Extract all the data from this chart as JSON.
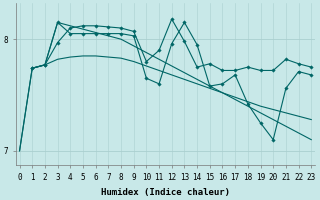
{
  "xlabel": "Humidex (Indice chaleur)",
  "bg_color": "#c8e8e8",
  "line_color": "#006666",
  "grid_color": "#aacfcf",
  "xlim": [
    -0.3,
    23.3
  ],
  "ylim": [
    6.87,
    8.32
  ],
  "yticks": [
    7,
    8
  ],
  "xticks": [
    0,
    1,
    2,
    3,
    4,
    5,
    6,
    7,
    8,
    9,
    10,
    11,
    12,
    13,
    14,
    15,
    16,
    17,
    18,
    19,
    20,
    21,
    22,
    23
  ],
  "series": [
    {
      "x": [
        0,
        1,
        2,
        3,
        4,
        5,
        6,
        7,
        8,
        9,
        10,
        11,
        12,
        13,
        14,
        15,
        16,
        17,
        18,
        19,
        20,
        21,
        22,
        23
      ],
      "y": [
        7.0,
        7.74,
        7.77,
        8.15,
        8.12,
        8.09,
        8.06,
        8.03,
        8.0,
        7.94,
        7.88,
        7.82,
        7.76,
        7.7,
        7.64,
        7.58,
        7.52,
        7.46,
        7.4,
        7.34,
        7.28,
        7.22,
        7.16,
        7.1
      ],
      "marker": false,
      "lw": 0.9
    },
    {
      "x": [
        1,
        2,
        3,
        4,
        5,
        6,
        7,
        8,
        9,
        10,
        11,
        12,
        13,
        14,
        15,
        16,
        17,
        18,
        19,
        20,
        21,
        22,
        23
      ],
      "y": [
        7.74,
        7.77,
        7.97,
        8.1,
        8.12,
        8.12,
        8.11,
        8.1,
        8.07,
        7.8,
        7.9,
        8.18,
        7.98,
        7.75,
        7.78,
        7.72,
        7.72,
        7.75,
        7.72,
        7.72,
        7.82,
        7.78,
        7.75
      ],
      "marker": true,
      "lw": 0.9
    },
    {
      "x": [
        1,
        2,
        3,
        4,
        5,
        6,
        7,
        8,
        9,
        10,
        11,
        12,
        13,
        14,
        15,
        16,
        17,
        18,
        19,
        20,
        21,
        22,
        23
      ],
      "y": [
        7.74,
        7.77,
        8.15,
        8.05,
        8.05,
        8.05,
        8.05,
        8.05,
        8.03,
        7.65,
        7.6,
        7.96,
        8.15,
        7.95,
        7.58,
        7.6,
        7.68,
        7.42,
        7.25,
        7.1,
        7.56,
        7.71,
        7.68
      ],
      "marker": true,
      "lw": 0.9
    },
    {
      "x": [
        0,
        1,
        2,
        3,
        4,
        5,
        6,
        7,
        8,
        9,
        10,
        11,
        12,
        13,
        14,
        15,
        16,
        17,
        18,
        19,
        20,
        21,
        22,
        23
      ],
      "y": [
        7.0,
        7.74,
        7.77,
        7.82,
        7.84,
        7.85,
        7.85,
        7.84,
        7.83,
        7.8,
        7.76,
        7.72,
        7.68,
        7.64,
        7.6,
        7.56,
        7.52,
        7.48,
        7.44,
        7.4,
        7.37,
        7.34,
        7.31,
        7.28
      ],
      "marker": false,
      "lw": 0.9
    }
  ],
  "tick_fontsize": 5.5,
  "label_fontsize": 6.5
}
